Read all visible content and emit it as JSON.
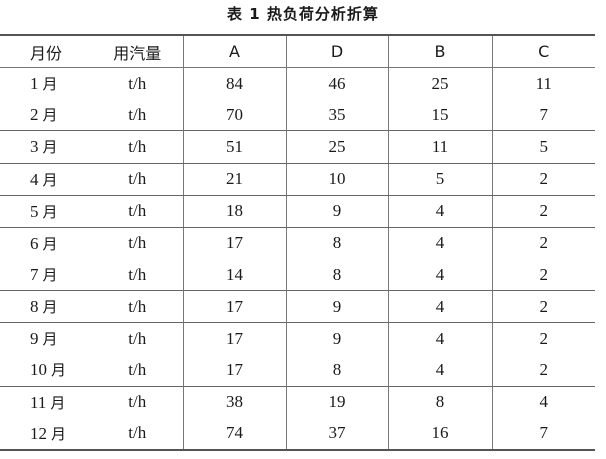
{
  "title": "表 1  热负荷分析折算",
  "chart_data": {
    "type": "table",
    "title": "表 1  热负荷分析折算",
    "columns": [
      "月份",
      "用汽量",
      "A",
      "D",
      "B",
      "C"
    ],
    "rows": [
      {
        "month": "1",
        "unit": "t/h",
        "A": "84",
        "D": "46",
        "B": "25",
        "C": "11"
      },
      {
        "month": "2",
        "unit": "t/h",
        "A": "70",
        "D": "35",
        "B": "15",
        "C": "7"
      },
      {
        "month": "3",
        "unit": "t/h",
        "A": "51",
        "D": "25",
        "B": "11",
        "C": "5"
      },
      {
        "month": "4",
        "unit": "t/h",
        "A": "21",
        "D": "10",
        "B": "5",
        "C": "2"
      },
      {
        "month": "5",
        "unit": "t/h",
        "A": "18",
        "D": "9",
        "B": "4",
        "C": "2"
      },
      {
        "month": "6",
        "unit": "t/h",
        "A": "17",
        "D": "8",
        "B": "4",
        "C": "2"
      },
      {
        "month": "7",
        "unit": "t/h",
        "A": "14",
        "D": "8",
        "B": "4",
        "C": "2"
      },
      {
        "month": "8",
        "unit": "t/h",
        "A": "17",
        "D": "9",
        "B": "4",
        "C": "2"
      },
      {
        "month": "9",
        "unit": "t/h",
        "A": "17",
        "D": "9",
        "B": "4",
        "C": "2"
      },
      {
        "month": "10",
        "unit": "t/h",
        "A": "17",
        "D": "8",
        "B": "4",
        "C": "2"
      },
      {
        "month": "11",
        "unit": "t/h",
        "A": "38",
        "D": "19",
        "B": "8",
        "C": "4"
      },
      {
        "month": "12",
        "unit": "t/h",
        "A": "74",
        "D": "37",
        "B": "16",
        "C": "7"
      }
    ],
    "month_suffix": "月"
  }
}
